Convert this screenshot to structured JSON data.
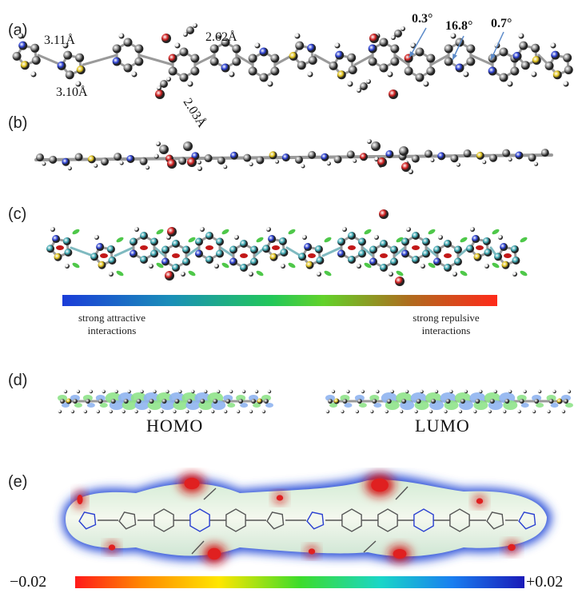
{
  "panels": {
    "a": {
      "label": "(a)",
      "distances": [
        "3.11Å",
        "3.10Å",
        "2.62Å",
        "2.03Å"
      ],
      "angles": [
        "0.3°",
        "16.8°",
        "0.7°"
      ]
    },
    "b": {
      "label": "(b)"
    },
    "c": {
      "label": "(c)",
      "scale_left": "strong attractive\ninteractions",
      "scale_right": "strong repulsive\ninteractions"
    },
    "d": {
      "label": "(d)",
      "homo": "HOMO",
      "lumo": "LUMO"
    },
    "e": {
      "label": "(e)",
      "scale_min": "−0.02",
      "scale_max": "+0.02"
    }
  },
  "colors": {
    "carbon": "#8a8a8a",
    "nitrogen": "#2a3fd1",
    "oxygen": "#d11f1f",
    "sulfur": "#e0c21c",
    "hydrogen": "#e8e8e8",
    "teal_carbon": "#3aa6b0",
    "arrow": "#5b8ac9"
  }
}
